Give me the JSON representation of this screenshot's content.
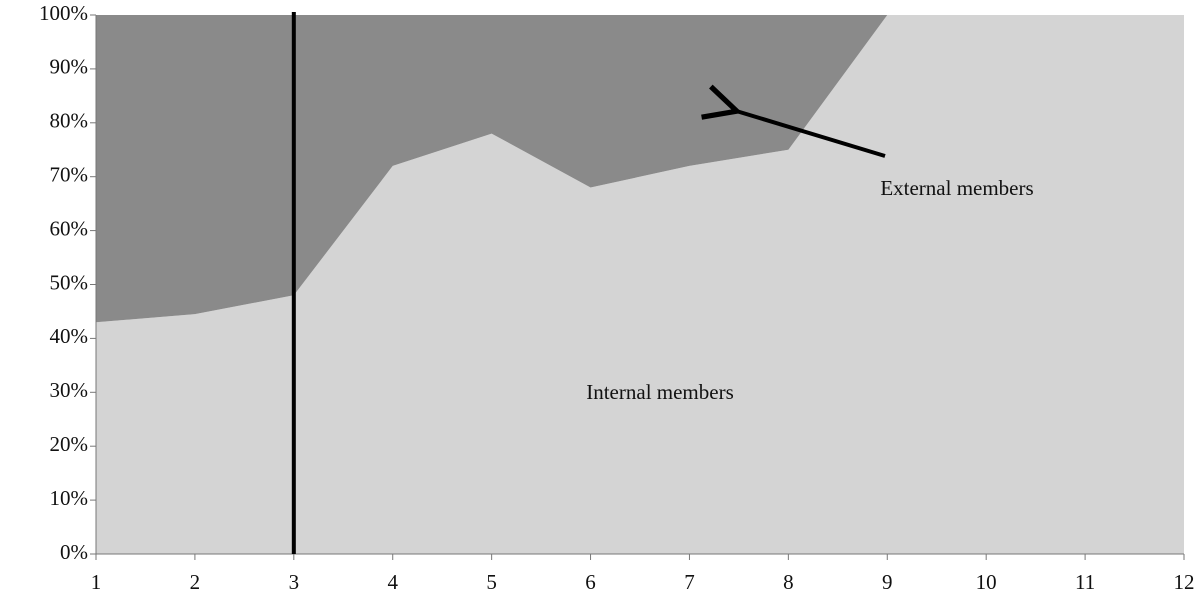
{
  "chart_data": {
    "type": "stacked_area",
    "x": [
      1,
      2,
      3,
      4,
      5,
      6,
      7,
      8,
      9,
      10,
      11,
      12
    ],
    "series": [
      {
        "name": "Internal members",
        "color": "#d4d4d4",
        "values": [
          43,
          44.5,
          48,
          72,
          78,
          68,
          72,
          75,
          100,
          100,
          100,
          100
        ]
      },
      {
        "name": "External members",
        "color": "#8a8a8a",
        "values": [
          57,
          55.5,
          52,
          28,
          22,
          32,
          28,
          25,
          0,
          0,
          0,
          0
        ]
      }
    ],
    "xlim": [
      1,
      12
    ],
    "xticks": [
      1,
      2,
      3,
      4,
      5,
      6,
      7,
      8,
      9,
      10,
      11,
      12
    ],
    "ylim": [
      0,
      100
    ],
    "yticks": [
      {
        "value": 0,
        "label": "0%"
      },
      {
        "value": 10,
        "label": "10%"
      },
      {
        "value": 20,
        "label": "20%"
      },
      {
        "value": 30,
        "label": "30%"
      },
      {
        "value": 40,
        "label": "40%"
      },
      {
        "value": 50,
        "label": "50%"
      },
      {
        "value": 60,
        "label": "60%"
      },
      {
        "value": 70,
        "label": "70%"
      },
      {
        "value": 80,
        "label": "80%"
      },
      {
        "value": 90,
        "label": "90%"
      },
      {
        "value": 100,
        "label": "100%"
      }
    ],
    "vline_x": 3
  }
}
